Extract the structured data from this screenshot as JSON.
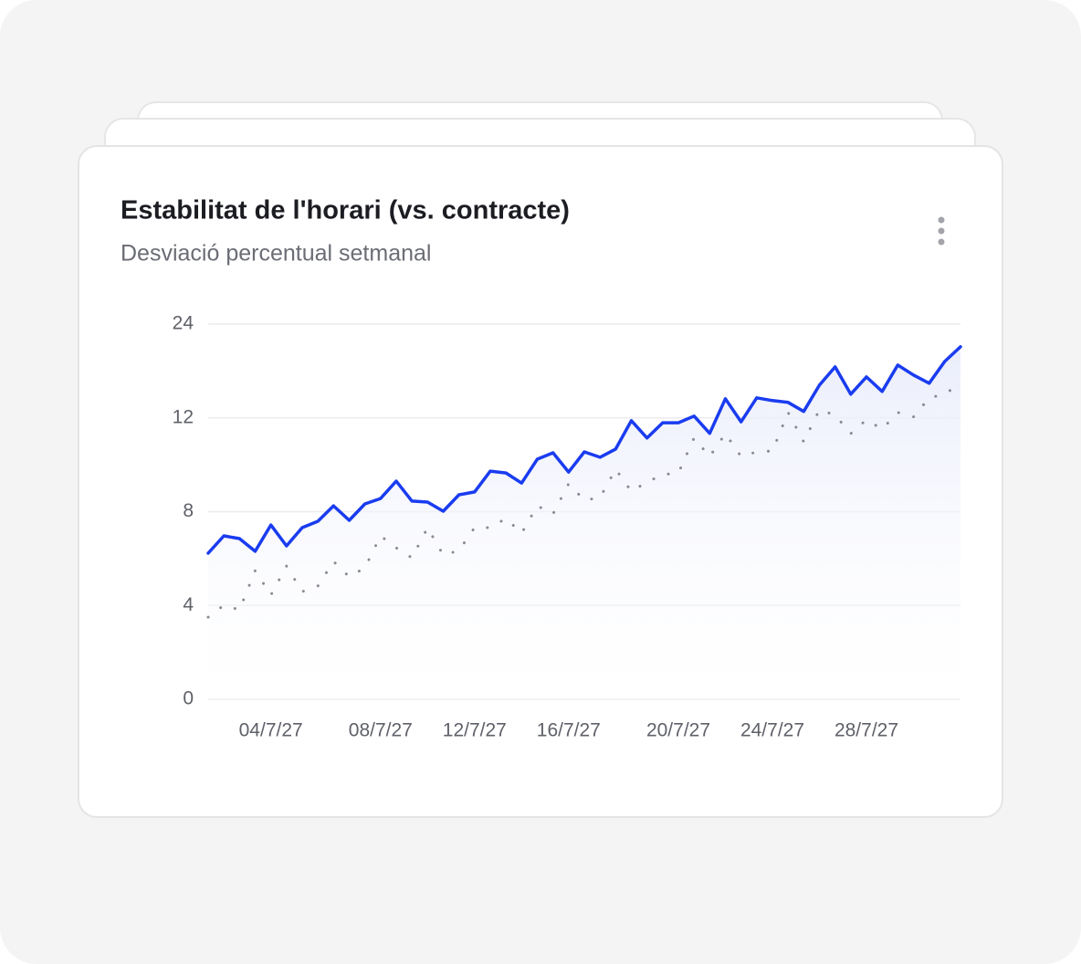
{
  "chart_data": {
    "type": "line",
    "title": "Estabilitat de l'horari (vs. contracte)",
    "subtitle": "Desviació percentual setmanal",
    "categories": [
      null,
      null,
      null,
      null,
      "04/7/27",
      null,
      null,
      null,
      null,
      null,
      null,
      "08/7/27",
      null,
      null,
      null,
      null,
      null,
      "12/7/27",
      null,
      null,
      null,
      null,
      null,
      "16/7/27",
      null,
      null,
      null,
      null,
      null,
      null,
      "20/7/27",
      null,
      null,
      null,
      null,
      null,
      "24/7/27",
      null,
      null,
      null,
      null,
      null,
      "28/7/27",
      null,
      null,
      null,
      null,
      null,
      null
    ],
    "series": [
      {
        "color": "#1a3cf0",
        "style": "solid",
        "area": true,
        "values": [
          6.23,
          6.97,
          6.85,
          6.31,
          7.43,
          6.54,
          7.32,
          7.59,
          8.25,
          7.63,
          8.33,
          8.56,
          9.3,
          8.45,
          8.41,
          8.02,
          8.72,
          8.84,
          9.73,
          9.65,
          9.22,
          10.24,
          10.51,
          9.69,
          10.55,
          10.32,
          10.67,
          11.88,
          11.14,
          11.79,
          11.79,
          12.23,
          11.34,
          14.45,
          11.83,
          14.56,
          14.21,
          13.98,
          12.82,
          16.19,
          18.52,
          15.03,
          17.24,
          15.38,
          18.76,
          17.48,
          16.43,
          19.22,
          21.09
        ]
      },
      {
        "color": "#8a8a94",
        "style": "dotted",
        "area": false,
        "values": [
          3.5,
          4.01,
          3.81,
          5.49,
          4.44,
          5.68,
          4.59,
          4.83,
          5.88,
          5.22,
          5.61,
          6.97,
          6.46,
          6.03,
          7.32,
          6.15,
          6.34,
          7.32,
          7.32,
          7.71,
          7.08,
          8.25,
          7.9,
          9.19,
          8.49,
          8.6,
          9.81,
          8.87,
          9.26,
          9.58,
          9.65,
          11.14,
          10.35,
          11.33,
          10.35,
          10.55,
          10.59,
          12.7,
          10.98,
          13.05,
          12.35,
          11.33,
          11.92,
          11.52,
          12.7,
          12.12,
          14.56,
          15.03,
          16.43
        ]
      }
    ],
    "ylim": [
      0,
      24
    ],
    "yticks": [
      0,
      4,
      8,
      12,
      24
    ],
    "yscale": "piecewise",
    "grid": true
  }
}
